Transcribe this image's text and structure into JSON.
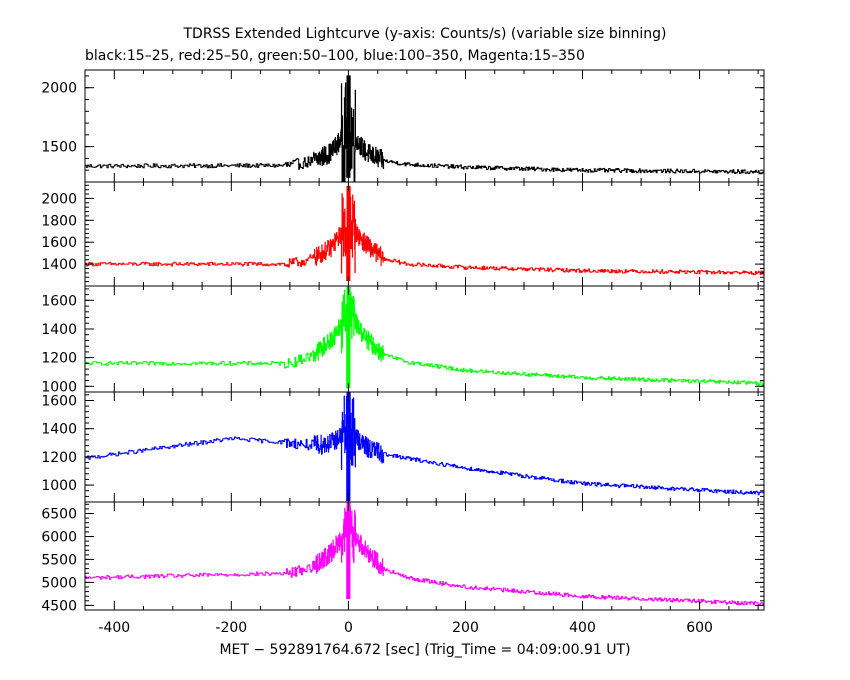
{
  "chart_data": {
    "type": "line",
    "title": "TDRSS Extended Lightcurve (y-axis: Counts/s) (variable size binning)",
    "subtitle": "black:15–25, red:25–50, green:50–100, blue:100–350, Magenta:15–350",
    "xlabel": "MET − 592891764.672 [sec] (Trig_Time = 04:09:00.91 UT)",
    "xlim": [
      -450,
      710
    ],
    "xticks": [
      -400,
      -200,
      0,
      200,
      400,
      600
    ],
    "grid": false,
    "legend": "none",
    "panels": [
      {
        "name": "black:15–25",
        "color": "#000000",
        "ylim": [
          1200,
          2150
        ],
        "yticks": [
          1500,
          2000
        ],
        "profile": {
          "x": [
            -450,
            -100,
            -60,
            -30,
            -10,
            0,
            10,
            30,
            60,
            100,
            200,
            400,
            710
          ],
          "y": [
            1335,
            1340,
            1380,
            1450,
            1580,
            1700,
            1580,
            1450,
            1380,
            1350,
            1325,
            1300,
            1285
          ]
        },
        "spike_peak": 2100,
        "spike_min": 1240
      },
      {
        "name": "red:25–50",
        "color": "#ff0000",
        "ylim": [
          1200,
          2150
        ],
        "yticks": [
          1400,
          1600,
          1800,
          2000
        ],
        "profile": {
          "x": [
            -450,
            -100,
            -60,
            -30,
            -10,
            0,
            10,
            30,
            60,
            100,
            200,
            400,
            710
          ],
          "y": [
            1400,
            1400,
            1450,
            1550,
            1700,
            1820,
            1700,
            1580,
            1450,
            1400,
            1370,
            1340,
            1320
          ]
        },
        "spike_peak": 2110,
        "spike_min": 1250
      },
      {
        "name": "green:50–100",
        "color": "#00ff00",
        "ylim": [
          960,
          1700
        ],
        "yticks": [
          1000,
          1200,
          1400,
          1600
        ],
        "profile": {
          "x": [
            -450,
            -100,
            -60,
            -30,
            -10,
            0,
            10,
            30,
            60,
            100,
            200,
            400,
            710
          ],
          "y": [
            1160,
            1160,
            1220,
            1320,
            1450,
            1550,
            1460,
            1330,
            1220,
            1170,
            1110,
            1060,
            1020
          ]
        },
        "spike_peak": 1690,
        "spike_min": 990
      },
      {
        "name": "blue:100–350",
        "color": "#0000ff",
        "ylim": [
          880,
          1660
        ],
        "yticks": [
          1000,
          1200,
          1400,
          1600
        ],
        "profile": {
          "x": [
            -450,
            -200,
            -100,
            -60,
            -30,
            -10,
            0,
            10,
            30,
            60,
            100,
            200,
            400,
            710
          ],
          "y": [
            1190,
            1330,
            1300,
            1280,
            1300,
            1350,
            1420,
            1350,
            1270,
            1220,
            1190,
            1120,
            1010,
            940
          ]
        },
        "spike_peak": 1660,
        "spike_min": 890
      },
      {
        "name": "Magenta:15–350",
        "color": "#ff00ff",
        "ylim": [
          4400,
          6750
        ],
        "yticks": [
          4500,
          5000,
          5500,
          6000,
          6500
        ],
        "profile": {
          "x": [
            -450,
            -100,
            -60,
            -30,
            -10,
            0,
            10,
            30,
            60,
            100,
            200,
            400,
            710
          ],
          "y": [
            5100,
            5200,
            5350,
            5650,
            6000,
            6250,
            6000,
            5700,
            5300,
            5100,
            4900,
            4700,
            4530
          ]
        },
        "spike_peak": 6730,
        "spike_min": 4650
      }
    ]
  }
}
